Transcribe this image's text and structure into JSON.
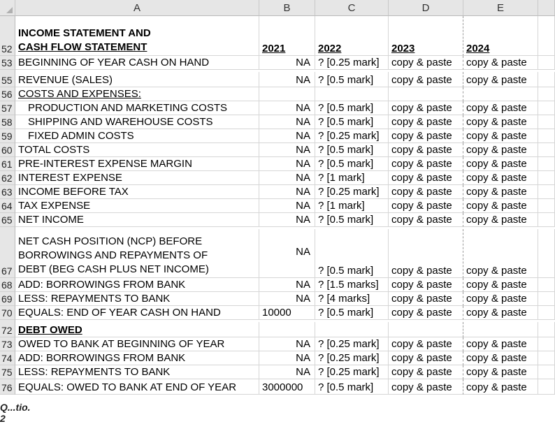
{
  "columns": [
    "A",
    "B",
    "C",
    "D",
    "E"
  ],
  "rows": [
    {
      "num": "52",
      "a": "INCOME STATEMENT AND\nCASH FLOW STATEMENT",
      "b": "2021",
      "c": "2022",
      "d": "2023",
      "e": "2024"
    },
    {
      "num": "53",
      "a": "BEGINNING OF YEAR CASH ON HAND",
      "b": "NA",
      "c": "? [0.25 mark]",
      "d": "copy & paste",
      "e": "copy & paste"
    },
    {
      "num": "55",
      "a": "REVENUE (SALES)",
      "b": "NA",
      "c": "? [0.5 mark]",
      "d": "copy & paste",
      "e": "copy & paste"
    },
    {
      "num": "56",
      "a": "COSTS AND EXPENSES:",
      "b": "",
      "c": "",
      "d": "",
      "e": ""
    },
    {
      "num": "57",
      "a": "PRODUCTION AND MARKETING COSTS",
      "b": "NA",
      "c": "? [0.5 mark]",
      "d": "copy & paste",
      "e": "copy & paste"
    },
    {
      "num": "58",
      "a": "SHIPPING AND WAREHOUSE COSTS",
      "b": "NA",
      "c": "? [0.5 mark]",
      "d": "copy & paste",
      "e": "copy & paste"
    },
    {
      "num": "59",
      "a": "FIXED ADMIN COSTS",
      "b": "NA",
      "c": "? [0.25 mark]",
      "d": "copy & paste",
      "e": "copy & paste"
    },
    {
      "num": "60",
      "a": "TOTAL COSTS",
      "b": "NA",
      "c": "? [0.5 mark]",
      "d": "copy & paste",
      "e": "copy & paste"
    },
    {
      "num": "61",
      "a": "PRE-INTEREST EXPENSE MARGIN",
      "b": "NA",
      "c": "? [0.5 mark]",
      "d": "copy & paste",
      "e": "copy & paste"
    },
    {
      "num": "62",
      "a": "INTEREST EXPENSE",
      "b": "NA",
      "c": "? [1 mark]",
      "d": "copy & paste",
      "e": "copy & paste"
    },
    {
      "num": "63",
      "a": "INCOME BEFORE TAX",
      "b": "NA",
      "c": "? [0.25 mark]",
      "d": "copy & paste",
      "e": "copy & paste"
    },
    {
      "num": "64",
      "a": "TAX EXPENSE",
      "b": "NA",
      "c": "? [1 mark]",
      "d": "copy & paste",
      "e": "copy & paste"
    },
    {
      "num": "65",
      "a": "NET INCOME",
      "b": "NA",
      "c": "? [0.5 mark]",
      "d": "copy & paste",
      "e": "copy & paste"
    },
    {
      "num": "67",
      "a": "NET CASH POSITION (NCP) BEFORE\nBORROWINGS AND REPAYMENTS OF\nDEBT (BEG CASH PLUS NET INCOME)",
      "b": "NA",
      "c": "? [0.5 mark]",
      "d": "copy & paste",
      "e": "copy & paste"
    },
    {
      "num": "68",
      "a": "ADD: BORROWINGS FROM BANK",
      "b": "NA",
      "c": "? [1.5 marks]",
      "d": "copy & paste",
      "e": "copy & paste"
    },
    {
      "num": "69",
      "a": "LESS: REPAYMENTS TO BANK",
      "b": "NA",
      "c": "? [4 marks]",
      "d": "copy & paste",
      "e": "copy & paste"
    },
    {
      "num": "70",
      "a": "EQUALS: END OF YEAR CASH ON HAND",
      "b": "10000",
      "c": "? [0.5 mark]",
      "d": "copy & paste",
      "e": "copy & paste"
    },
    {
      "num": "72",
      "a": "DEBT OWED",
      "b": "",
      "c": "",
      "d": "",
      "e": ""
    },
    {
      "num": "73",
      "a": "OWED TO BANK AT BEGINNING OF YEAR",
      "b": "NA",
      "c": "? [0.25 mark]",
      "d": "copy & paste",
      "e": "copy & paste"
    },
    {
      "num": "74",
      "a": "ADD: BORROWINGS FROM BANK",
      "b": "NA",
      "c": "? [0.25 mark]",
      "d": "copy & paste",
      "e": "copy & paste"
    },
    {
      "num": "75",
      "a": "LESS: REPAYMENTS TO BANK",
      "b": "NA",
      "c": "? [0.25 mark]",
      "d": "copy & paste",
      "e": "copy & paste"
    },
    {
      "num": "76",
      "a": "EQUALS: OWED TO BANK AT END OF YEAR",
      "b": "3000000",
      "c": "? [0.5 mark]",
      "d": "copy & paste",
      "e": "copy & paste"
    }
  ],
  "footer_text": "Q...tio. 2"
}
